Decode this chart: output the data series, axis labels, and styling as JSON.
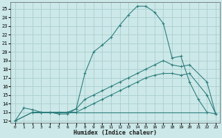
{
  "xlabel": "Humidex (Indice chaleur)",
  "bg_color": "#cce8e8",
  "grid_color": "#aacece",
  "line_color": "#2d7d7d",
  "xlim": [
    -0.5,
    23.5
  ],
  "ylim": [
    11.8,
    25.8
  ],
  "yticks": [
    12,
    13,
    14,
    15,
    16,
    17,
    18,
    19,
    20,
    21,
    22,
    23,
    24,
    25
  ],
  "xticks": [
    0,
    1,
    2,
    3,
    4,
    5,
    6,
    7,
    8,
    9,
    10,
    11,
    12,
    13,
    14,
    15,
    16,
    17,
    18,
    19,
    20,
    21,
    22,
    23
  ],
  "line1_x": [
    0,
    1,
    2,
    3,
    4,
    5,
    6,
    7,
    8,
    9,
    10,
    11,
    12,
    13,
    14,
    15,
    16,
    17,
    18,
    19,
    20,
    21,
    22,
    23
  ],
  "line1_y": [
    12.0,
    13.5,
    13.3,
    13.0,
    13.0,
    12.8,
    12.8,
    13.4,
    17.5,
    20.0,
    20.8,
    21.7,
    23.1,
    24.3,
    25.3,
    25.3,
    24.6,
    23.3,
    19.3,
    19.5,
    16.5,
    14.5,
    13.0,
    12.8
  ],
  "line2_x": [
    0,
    2,
    3,
    6,
    7,
    8,
    9,
    10,
    11,
    12,
    13,
    14,
    15,
    16,
    17,
    18,
    19,
    20,
    22,
    23
  ],
  "line2_y": [
    12.0,
    13.0,
    13.0,
    13.0,
    13.4,
    14.5,
    15.0,
    15.5,
    16.0,
    16.5,
    17.0,
    17.5,
    18.0,
    18.5,
    19.0,
    18.5,
    18.3,
    18.5,
    16.5,
    12.8
  ],
  "line3_x": [
    0,
    2,
    3,
    4,
    5,
    6,
    7,
    8,
    9,
    10,
    11,
    12,
    13,
    14,
    15,
    16,
    17,
    18,
    19,
    20,
    22,
    23
  ],
  "line3_y": [
    12.0,
    13.0,
    13.0,
    13.0,
    13.0,
    13.0,
    13.0,
    13.5,
    14.0,
    14.5,
    15.0,
    15.5,
    16.0,
    16.5,
    17.0,
    17.3,
    17.5,
    17.5,
    17.3,
    17.5,
    15.0,
    12.8
  ],
  "line4_x": [
    2,
    22
  ],
  "line4_y": [
    13.0,
    13.0
  ]
}
